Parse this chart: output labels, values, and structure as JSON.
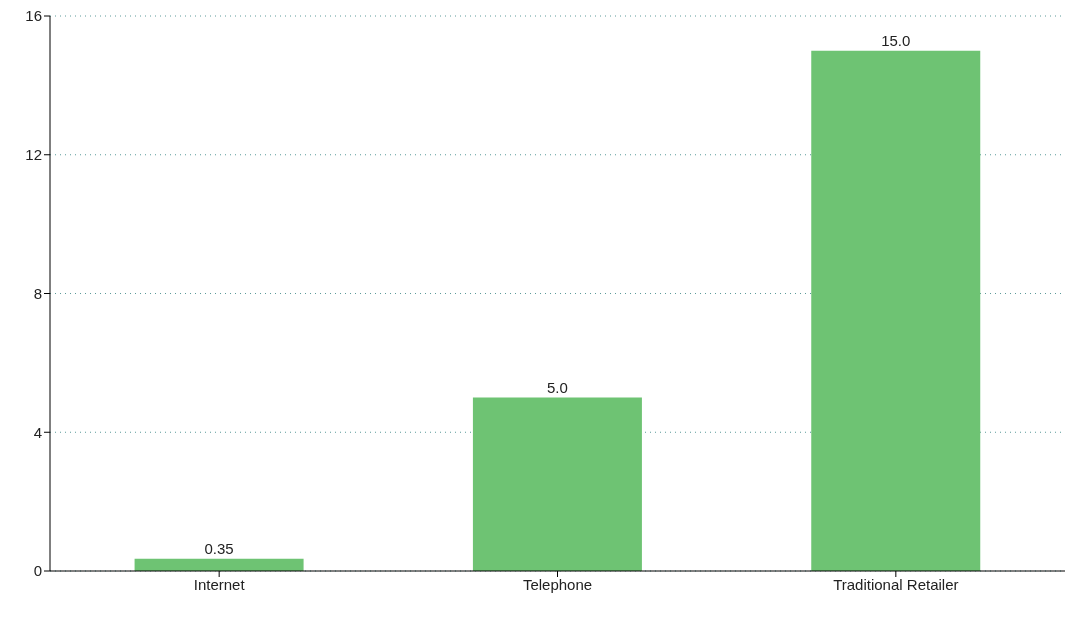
{
  "chart_data": {
    "type": "bar",
    "categories": [
      "Internet",
      "Telephone",
      "Traditional Retailer"
    ],
    "values": [
      0.35,
      5.0,
      15.0
    ],
    "value_labels": [
      "0.35",
      "5.0",
      "15.0"
    ],
    "color": "#6ec373",
    "ylim": [
      0,
      16
    ],
    "yticks": [
      0,
      4,
      8,
      12,
      16
    ],
    "grid": "y"
  }
}
